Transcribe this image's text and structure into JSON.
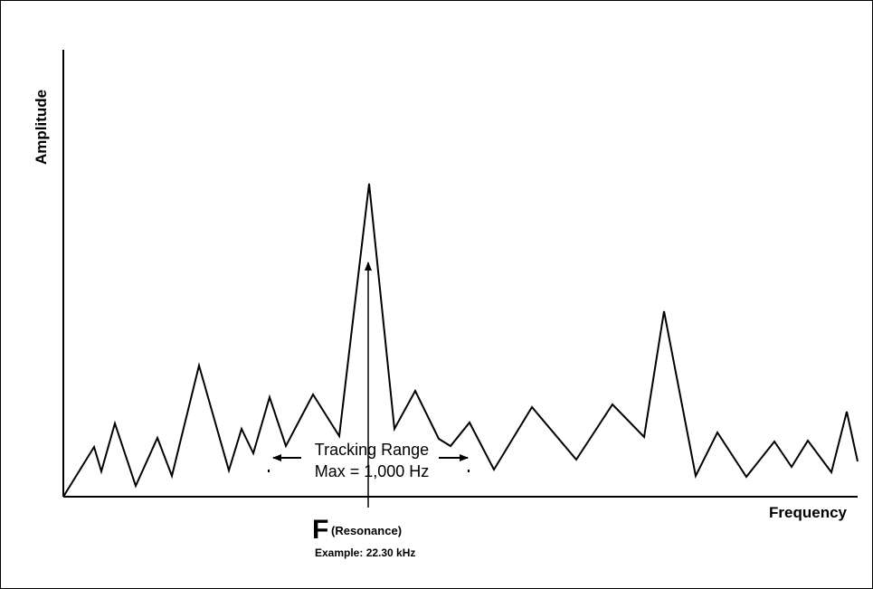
{
  "axes": {
    "x_label": "Frequency",
    "y_label": "Amplitude"
  },
  "annotation": {
    "line1": "Tracking Range",
    "line2": "Max = 1,000 Hz"
  },
  "resonance": {
    "symbol": "F",
    "label": "(Resonance)",
    "example": "Example: 22.30 kHz"
  },
  "spectrum": [
    [
      0,
      0
    ],
    [
      34,
      55
    ],
    [
      42,
      28
    ],
    [
      57,
      81
    ],
    [
      80,
      12
    ],
    [
      104,
      65
    ],
    [
      120,
      23
    ],
    [
      150,
      145
    ],
    [
      183,
      29
    ],
    [
      197,
      75
    ],
    [
      210,
      48
    ],
    [
      228,
      110
    ],
    [
      246,
      56
    ],
    [
      276,
      113
    ],
    [
      305,
      67
    ],
    [
      338,
      346
    ],
    [
      366,
      75
    ],
    [
      389,
      117
    ],
    [
      415,
      64
    ],
    [
      428,
      56
    ],
    [
      449,
      82
    ],
    [
      476,
      30
    ],
    [
      518,
      99
    ],
    [
      567,
      41
    ],
    [
      607,
      102
    ],
    [
      642,
      66
    ],
    [
      664,
      205
    ],
    [
      699,
      23
    ],
    [
      723,
      71
    ],
    [
      755,
      22
    ],
    [
      786,
      61
    ],
    [
      805,
      33
    ],
    [
      823,
      62
    ],
    [
      849,
      27
    ],
    [
      866,
      94
    ],
    [
      878,
      39
    ]
  ]
}
